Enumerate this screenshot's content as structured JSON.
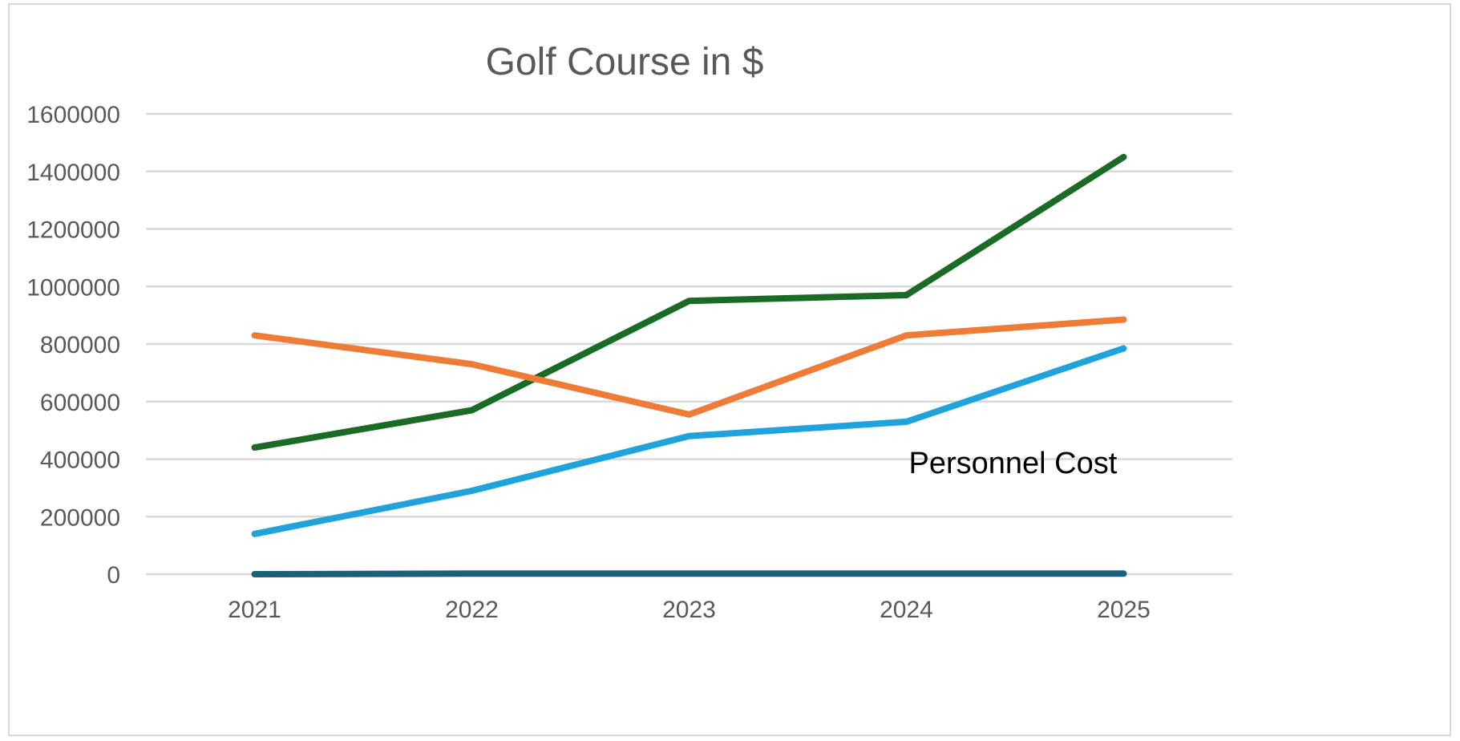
{
  "chart_data": {
    "type": "line",
    "title": "Golf Course in $",
    "xlabel": "",
    "ylabel": "",
    "categories": [
      "2021",
      "2022",
      "2023",
      "2024",
      "2025"
    ],
    "ylim": [
      0,
      1600000
    ],
    "yticks": [
      0,
      200000,
      400000,
      600000,
      800000,
      1000000,
      1200000,
      1400000,
      1600000
    ],
    "ytick_labels": [
      "0",
      "200000",
      "400000",
      "600000",
      "800000",
      "1000000",
      "1200000",
      "1400000",
      "1600000"
    ],
    "grid": true,
    "legend": "none",
    "series": [
      {
        "color": "#1a6b26",
        "values": [
          440000,
          570000,
          950000,
          970000,
          1450000
        ]
      },
      {
        "color": "#ee7b36",
        "values": [
          830000,
          730000,
          555000,
          830000,
          885000
        ]
      },
      {
        "color": "#1fa3dc",
        "values": [
          140000,
          290000,
          480000,
          530000,
          785000
        ]
      },
      {
        "color": "#1c5f7d",
        "values": [
          0,
          2000,
          2000,
          2000,
          2000
        ]
      }
    ],
    "annotations": [
      {
        "text": "Personnel Cost",
        "x": "2024",
        "y": 390000
      }
    ]
  }
}
